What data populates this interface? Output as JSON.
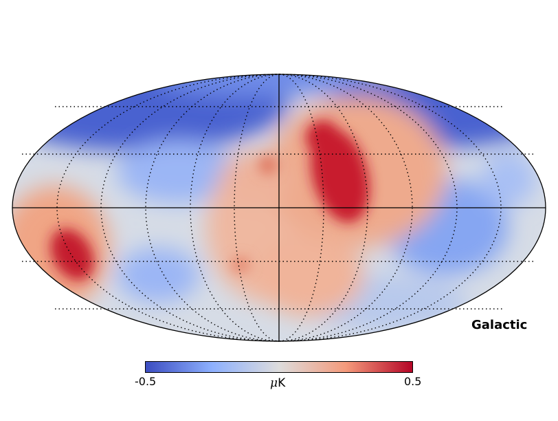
{
  "map": {
    "projection": "mollweide",
    "coordinate_system": "Galactic",
    "graticule": "dotted",
    "colormap": "coolwarm",
    "colors": {
      "low": "#3b4cc0",
      "mid": "#dddddd",
      "high": "#b40426"
    }
  },
  "colorbar": {
    "min_label": "-0.5",
    "max_label": "0.5",
    "unit_symbol": "μ",
    "unit_text": "K"
  }
}
